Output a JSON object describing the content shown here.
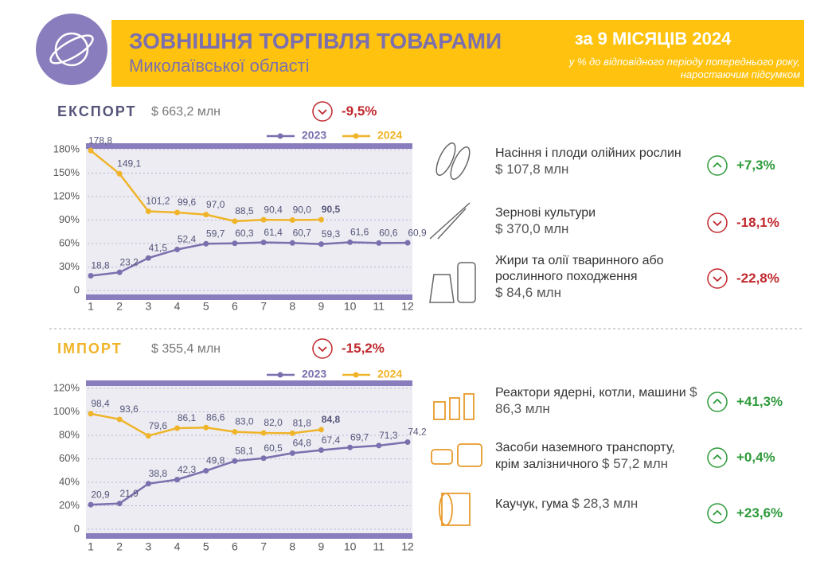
{
  "header": {
    "title": "ЗОВНІШНЯ ТОРГІВЛЯ ТОВАРАМИ",
    "subtitle": "Миколаївської області",
    "period": "за 9 МІСЯЦІВ 2024",
    "note": [
      "у % до відповідного періоду попереднього року,",
      "наростаючим підсумком"
    ]
  },
  "sections": [
    {
      "label": "ЕКСПОРТ",
      "total": "$ 663,2 млн",
      "change": "-9,5%",
      "items": [
        {
          "name": "Насіння і плоди олійних рослин",
          "amount": "$ 107,8 млн",
          "change": "+7,3%"
        },
        {
          "name": "Зернові культури",
          "amount": "$ 370,0 млн",
          "change": "-18,1%"
        },
        {
          "name": "Жири та олії тваринного або рослинного походження",
          "amount": "$ 84,6 млн",
          "change": "-22,8%"
        }
      ]
    },
    {
      "label": "ІМПОРТ",
      "total": "$ 355,4 млн",
      "change": "-15,2%",
      "items": [
        {
          "name": "Реактори ядерні, котли, машини",
          "amount": "$ 86,3 млн",
          "change": "+41,3%"
        },
        {
          "name": "Засоби наземного транспорту, крім залізничного",
          "amount": "$ 57,2 млн",
          "change": "+0,4%"
        },
        {
          "name": "Каучук, гума",
          "amount": "$ 28,3 млн",
          "change": "+23,6%"
        }
      ]
    }
  ],
  "chart_data": [
    {
      "type": "line",
      "categories": [
        "1",
        "2",
        "3",
        "4",
        "5",
        "6",
        "7",
        "8",
        "9",
        "10",
        "11",
        "12"
      ],
      "series": [
        {
          "name": "2023",
          "color": "#7b6fae",
          "values": [
            18.8,
            23.2,
            41.5,
            52.4,
            59.7,
            60.3,
            61.4,
            60.7,
            59.3,
            61.6,
            60.6,
            60.9
          ],
          "value_labels": [
            "18,8",
            "23,2",
            "41,5",
            "52,4",
            "59,7",
            "60,3",
            "61,4",
            "60,7",
            "59,3",
            "61,6",
            "60,6",
            "60,9"
          ]
        },
        {
          "name": "2024",
          "color": "#f0b429",
          "values": [
            178.8,
            149.1,
            101.2,
            99.6,
            97.0,
            88.5,
            90.4,
            90.0,
            90.5,
            null,
            null,
            null
          ],
          "value_labels": [
            "178,8",
            "149,1",
            "101,2",
            "99,6",
            "97,0",
            "88,5",
            "90,4",
            "90,0",
            "90,5",
            null,
            null,
            null
          ]
        }
      ],
      "ylim": [
        0,
        180
      ],
      "yticks": [
        0,
        {
          "value": 30,
          "label": "30%"
        },
        {
          "value": 60,
          "label": "60%"
        },
        {
          "value": 90,
          "label": "90%"
        },
        {
          "value": 120,
          "label": "120%"
        },
        {
          "value": 150,
          "label": "150%"
        },
        {
          "value": 180,
          "label": "180%"
        }
      ],
      "grid": true
    },
    {
      "type": "line",
      "categories": [
        "1",
        "2",
        "3",
        "4",
        "5",
        "6",
        "7",
        "8",
        "9",
        "10",
        "11",
        "12"
      ],
      "series": [
        {
          "name": "2023",
          "color": "#7b6fae",
          "values": [
            20.9,
            21.9,
            38.8,
            42.3,
            49.8,
            58.1,
            60.5,
            64.8,
            67.4,
            69.7,
            71.3,
            74.2
          ],
          "value_labels": [
            "20,9",
            "21,9",
            "38,8",
            "42,3",
            "49,8",
            "58,1",
            "60,5",
            "64,8",
            "67,4",
            "69,7",
            "71,3",
            "74,2"
          ]
        },
        {
          "name": "2024",
          "color": "#f0b429",
          "values": [
            98.4,
            93.6,
            79.6,
            86.1,
            86.6,
            83.0,
            82.0,
            81.8,
            84.8,
            null,
            null,
            null
          ],
          "value_labels": [
            "98,4",
            "93,6",
            "79,6",
            "86,1",
            "86,6",
            "83,0",
            "82,0",
            "81,8",
            "84,8",
            null,
            null,
            null
          ]
        }
      ],
      "ylim": [
        0,
        120
      ],
      "yticks": [
        0,
        {
          "value": 20,
          "label": "20%"
        },
        {
          "value": 40,
          "label": "40%"
        },
        {
          "value": 60,
          "label": "60%"
        },
        {
          "value": 80,
          "label": "80%"
        },
        {
          "value": 100,
          "label": "100%"
        },
        {
          "value": 120,
          "label": "120%"
        }
      ],
      "grid": true
    }
  ]
}
